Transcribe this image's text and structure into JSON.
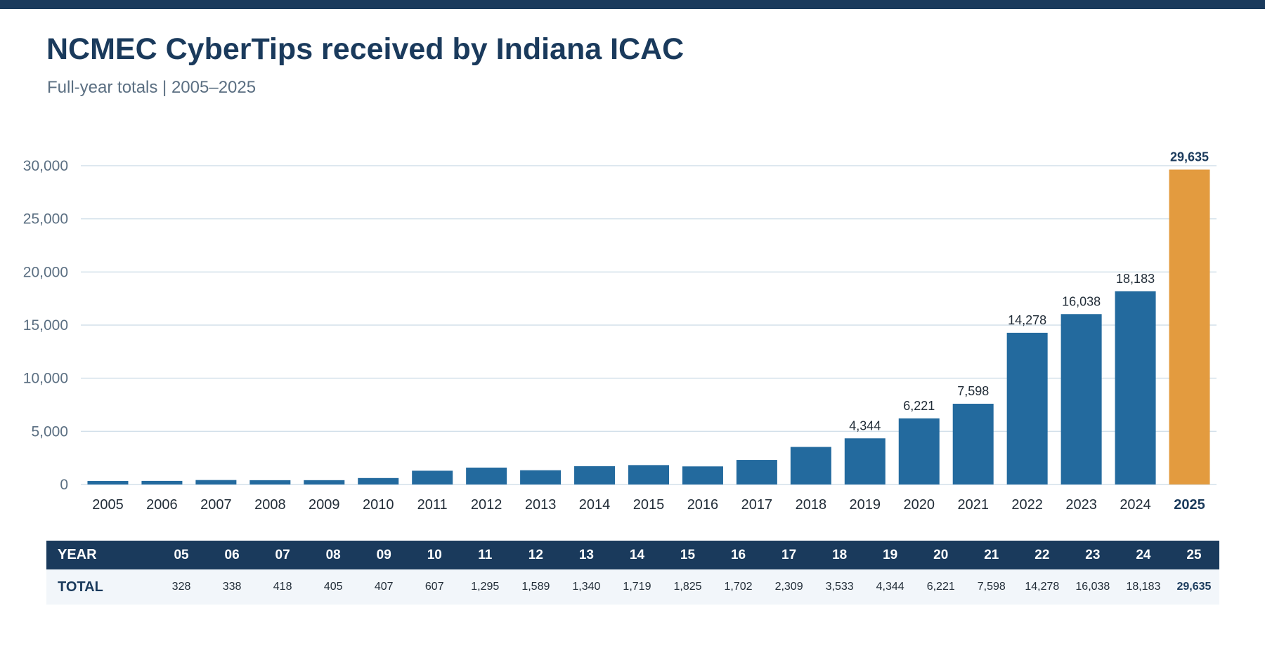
{
  "page": {
    "title": "NCMEC CyberTips received by Indiana ICAC",
    "subtitle": "Full-year totals  |  2005–2025",
    "colors": {
      "header": "#1a3a5c",
      "bar": "#236a9e",
      "highlight": "#e39b3f",
      "grid": "#d3e0ea"
    }
  },
  "chart_data": {
    "type": "bar",
    "title": "NCMEC CyberTips received by Indiana ICAC",
    "subtitle": "Full-year totals  |  2005–2025",
    "categories": [
      "2005",
      "2006",
      "2007",
      "2008",
      "2009",
      "2010",
      "2011",
      "2012",
      "2013",
      "2014",
      "2015",
      "2016",
      "2017",
      "2018",
      "2019",
      "2020",
      "2021",
      "2022",
      "2023",
      "2024",
      "2025"
    ],
    "values": [
      328,
      338,
      418,
      405,
      407,
      607,
      1295,
      1589,
      1340,
      1719,
      1825,
      1702,
      2309,
      3533,
      4344,
      6221,
      7598,
      14278,
      16038,
      18183,
      29635
    ],
    "ylim": [
      0,
      30000
    ],
    "yticks": [
      0,
      5000,
      10000,
      15000,
      20000,
      25000,
      30000
    ],
    "ytick_labels": [
      "0",
      "5,000",
      "10,000",
      "15,000",
      "20,000",
      "25,000",
      "30,000"
    ],
    "grid": true,
    "highlight_category": "2025",
    "labeled_categories": [
      "2019",
      "2020",
      "2021",
      "2022",
      "2023",
      "2024",
      "2025"
    ],
    "value_labels": {
      "2019": "4,344",
      "2020": "6,221",
      "2021": "7,598",
      "2022": "14,278",
      "2023": "16,038",
      "2024": "18,183",
      "2025": "29,635"
    }
  },
  "table": {
    "header_label": "YEAR",
    "row_label": "TOTAL",
    "years": [
      "05",
      "06",
      "07",
      "08",
      "09",
      "10",
      "11",
      "12",
      "13",
      "14",
      "15",
      "16",
      "17",
      "18",
      "19",
      "20",
      "21",
      "22",
      "23",
      "24",
      "25"
    ],
    "totals": [
      "328",
      "338",
      "418",
      "405",
      "407",
      "607",
      "1,295",
      "1,589",
      "1,340",
      "1,719",
      "1,825",
      "1,702",
      "2,309",
      "3,533",
      "4,344",
      "6,221",
      "7,598",
      "14,278",
      "16,038",
      "18,183",
      "29,635"
    ]
  }
}
